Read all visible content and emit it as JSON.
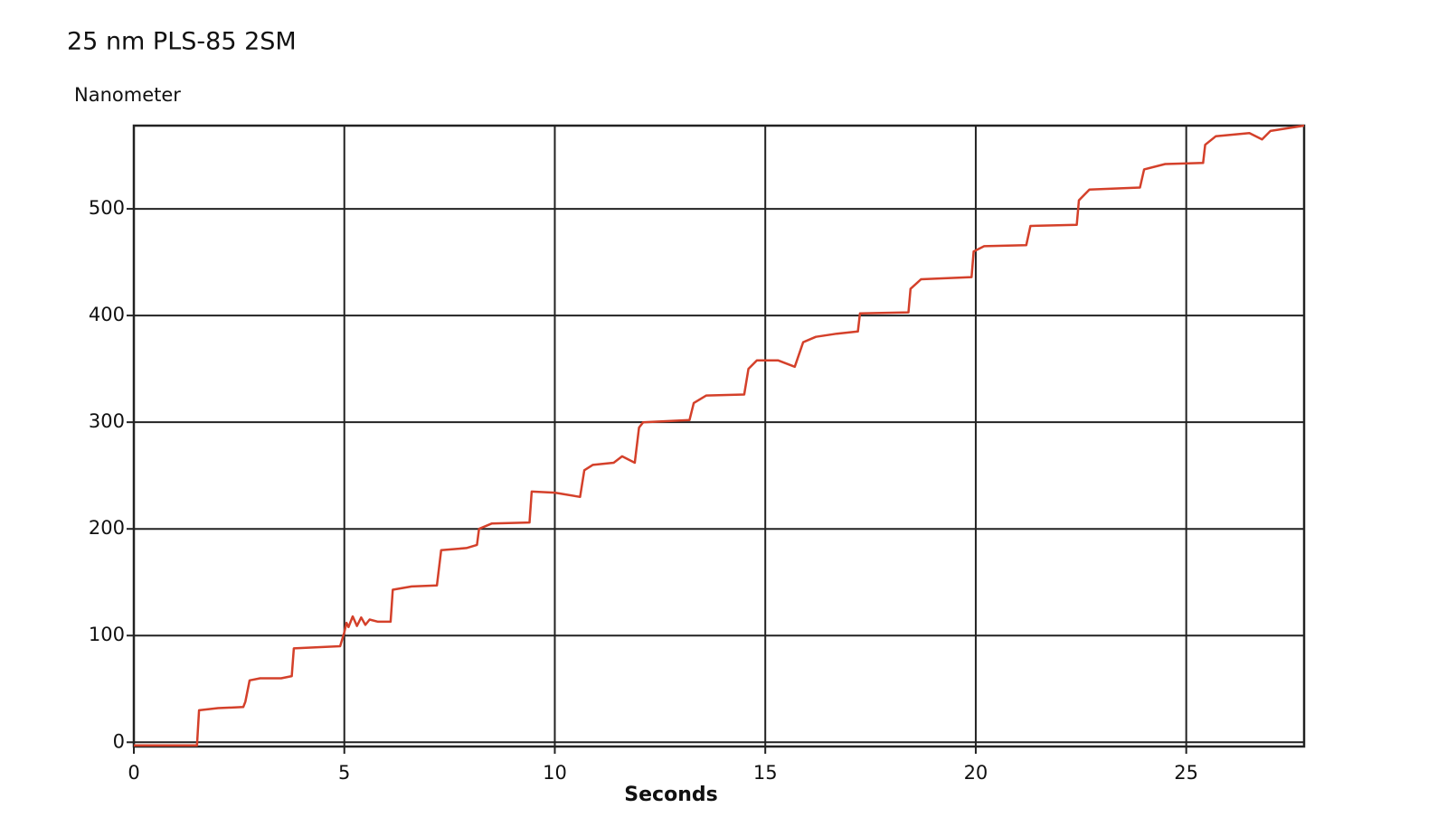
{
  "chart_data": {
    "type": "line",
    "title": "25 nm PLS-85 2SM",
    "ylabel": "Nanometer",
    "xlabel": "Seconds",
    "color": "#d4402a",
    "grid": true,
    "xlim": [
      0,
      27.8
    ],
    "ylim": [
      -4,
      578
    ],
    "xticks": [
      0,
      5,
      10,
      15,
      20,
      25
    ],
    "yticks": [
      0,
      100,
      200,
      300,
      400,
      500
    ],
    "x": [
      0,
      1.5,
      1.55,
      2.0,
      2.6,
      2.65,
      2.75,
      3.0,
      3.5,
      3.75,
      3.8,
      4.9,
      5.0,
      5.05,
      5.1,
      5.2,
      5.3,
      5.4,
      5.5,
      5.6,
      5.8,
      6.1,
      6.15,
      6.6,
      7.2,
      7.3,
      7.9,
      8.15,
      8.2,
      8.5,
      9.4,
      9.45,
      10.0,
      10.6,
      10.7,
      10.9,
      11.4,
      11.6,
      11.9,
      12.0,
      12.1,
      13.2,
      13.3,
      13.6,
      14.5,
      14.6,
      14.8,
      15.3,
      15.7,
      15.9,
      16.2,
      16.7,
      17.2,
      17.25,
      18.4,
      18.45,
      18.7,
      19.9,
      19.95,
      20.2,
      21.2,
      21.3,
      22.4,
      22.45,
      22.7,
      23.9,
      24.0,
      24.5,
      25.4,
      25.45,
      25.7,
      26.5,
      26.8,
      27.0,
      27.8
    ],
    "values": [
      -3,
      -3,
      30,
      32,
      33,
      38,
      58,
      60,
      60,
      62,
      88,
      90,
      103,
      112,
      108,
      118,
      109,
      117,
      110,
      115,
      113,
      113,
      143,
      146,
      147,
      180,
      182,
      185,
      200,
      205,
      206,
      235,
      234,
      230,
      255,
      260,
      262,
      268,
      262,
      295,
      300,
      302,
      318,
      325,
      326,
      350,
      358,
      358,
      352,
      375,
      380,
      383,
      385,
      402,
      403,
      425,
      434,
      436,
      460,
      465,
      466,
      484,
      485,
      508,
      518,
      520,
      537,
      542,
      543,
      560,
      568,
      571,
      565,
      573,
      578
    ]
  }
}
